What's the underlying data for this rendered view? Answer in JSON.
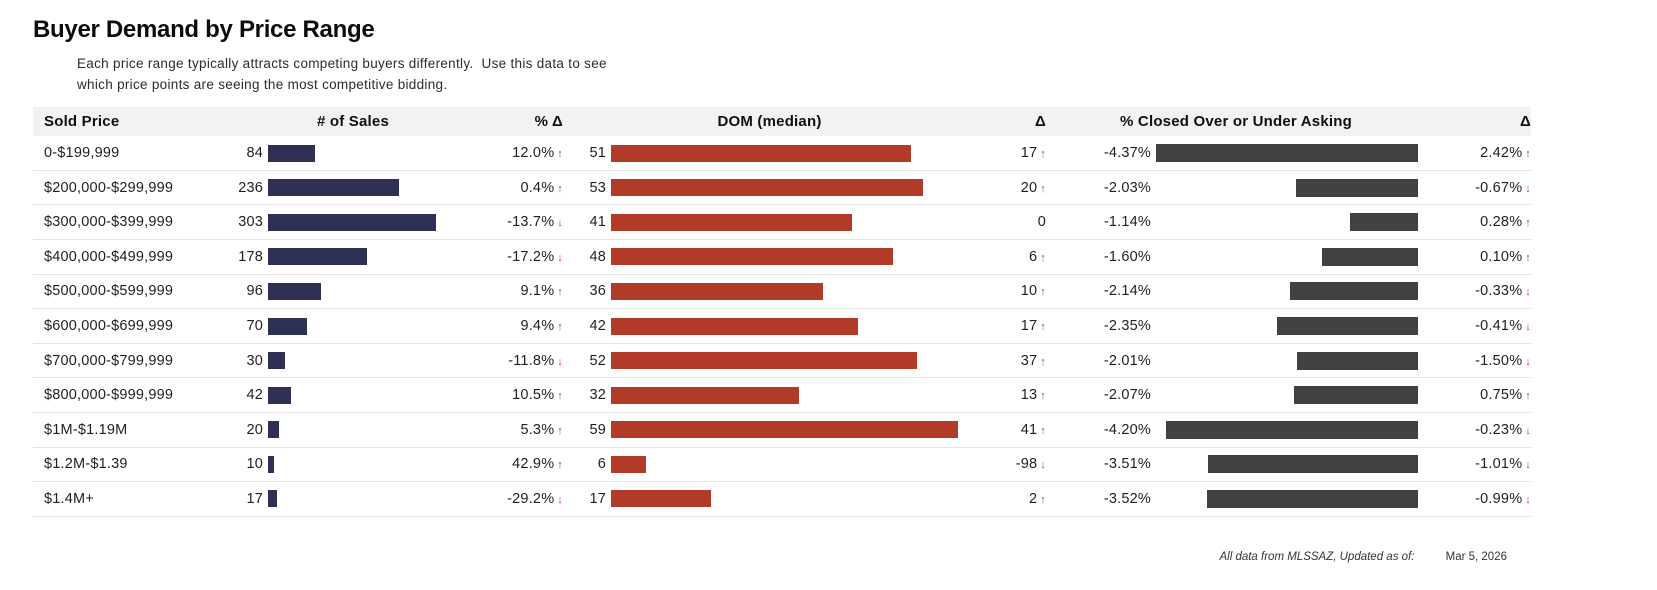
{
  "title": {
    "bold": "Buyer Demand",
    "rest": " by Price Range"
  },
  "subtitle": {
    "line1": "Each price range typically attracts competing buyers differently.  Use this data to see",
    "line2": "which price points are seeing the most competitive bidding."
  },
  "footer": {
    "note": "All data from MLSSAZ,   Updated as of:",
    "date": "Mar 5, 2026"
  },
  "colors": {
    "sales_bar": "#2e3155",
    "dom_bar": "#b23a28",
    "closed_bar": "#414141",
    "trend_up": "#2e7d3a",
    "trend_down": "#d63425",
    "header_bg": "#f2f2f2"
  },
  "chart_data": {
    "type": "table",
    "title": "Buyer Demand by Price Range",
    "columns": [
      "Sold Price",
      "# of Sales",
      "% Δ",
      "DOM (median)",
      "Δ",
      "% Closed Over or Under Asking",
      "Δ"
    ],
    "bar_maxima": {
      "sales": 303,
      "dom": 59,
      "closed_abs": 4.37
    },
    "rows": [
      {
        "sold_price": "0-$199,999",
        "sales": 84,
        "sales_pct_delta": "12.0%",
        "sales_trend": "up",
        "dom": 51,
        "dom_delta": "17",
        "dom_trend": "up",
        "closed_pct": "-4.37%",
        "closed_delta": "2.42%",
        "closed_trend": "up"
      },
      {
        "sold_price": "$200,000-$299,999",
        "sales": 236,
        "sales_pct_delta": "0.4%",
        "sales_trend": "up",
        "dom": 53,
        "dom_delta": "20",
        "dom_trend": "up",
        "closed_pct": "-2.03%",
        "closed_delta": "-0.67%",
        "closed_trend": "down"
      },
      {
        "sold_price": "$300,000-$399,999",
        "sales": 303,
        "sales_pct_delta": "-13.7%",
        "sales_trend": "down",
        "dom": 41,
        "dom_delta": "0",
        "dom_trend": "none",
        "closed_pct": "-1.14%",
        "closed_delta": "0.28%",
        "closed_trend": "up"
      },
      {
        "sold_price": "$400,000-$499,999",
        "sales": 178,
        "sales_pct_delta": "-17.2%",
        "sales_trend": "down",
        "dom": 48,
        "dom_delta": "6",
        "dom_trend": "up",
        "closed_pct": "-1.60%",
        "closed_delta": "0.10%",
        "closed_trend": "up"
      },
      {
        "sold_price": "$500,000-$599,999",
        "sales": 96,
        "sales_pct_delta": "9.1%",
        "sales_trend": "up",
        "dom": 36,
        "dom_delta": "10",
        "dom_trend": "up",
        "closed_pct": "-2.14%",
        "closed_delta": "-0.33%",
        "closed_trend": "down"
      },
      {
        "sold_price": "$600,000-$699,999",
        "sales": 70,
        "sales_pct_delta": "9.4%",
        "sales_trend": "up",
        "dom": 42,
        "dom_delta": "17",
        "dom_trend": "up",
        "closed_pct": "-2.35%",
        "closed_delta": "-0.41%",
        "closed_trend": "down"
      },
      {
        "sold_price": "$700,000-$799,999",
        "sales": 30,
        "sales_pct_delta": "-11.8%",
        "sales_trend": "down",
        "dom": 52,
        "dom_delta": "37",
        "dom_trend": "up",
        "closed_pct": "-2.01%",
        "closed_delta": "-1.50%",
        "closed_trend": "down"
      },
      {
        "sold_price": "$800,000-$999,999",
        "sales": 42,
        "sales_pct_delta": "10.5%",
        "sales_trend": "up",
        "dom": 32,
        "dom_delta": "13",
        "dom_trend": "up",
        "closed_pct": "-2.07%",
        "closed_delta": "0.75%",
        "closed_trend": "up"
      },
      {
        "sold_price": "$1M-$1.19M",
        "sales": 20,
        "sales_pct_delta": "5.3%",
        "sales_trend": "up",
        "dom": 59,
        "dom_delta": "41",
        "dom_trend": "up",
        "closed_pct": "-4.20%",
        "closed_delta": "-0.23%",
        "closed_trend": "down"
      },
      {
        "sold_price": "$1.2M-$1.39",
        "sales": 10,
        "sales_pct_delta": "42.9%",
        "sales_trend": "up",
        "dom": 6,
        "dom_delta": "-98",
        "dom_trend": "down",
        "closed_pct": "-3.51%",
        "closed_delta": "-1.01%",
        "closed_trend": "down"
      },
      {
        "sold_price": "$1.4M+",
        "sales": 17,
        "sales_pct_delta": "-29.2%",
        "sales_trend": "down",
        "dom": 17,
        "dom_delta": "2",
        "dom_trend": "up",
        "closed_pct": "-3.52%",
        "closed_delta": "-0.99%",
        "closed_trend": "down"
      }
    ]
  }
}
